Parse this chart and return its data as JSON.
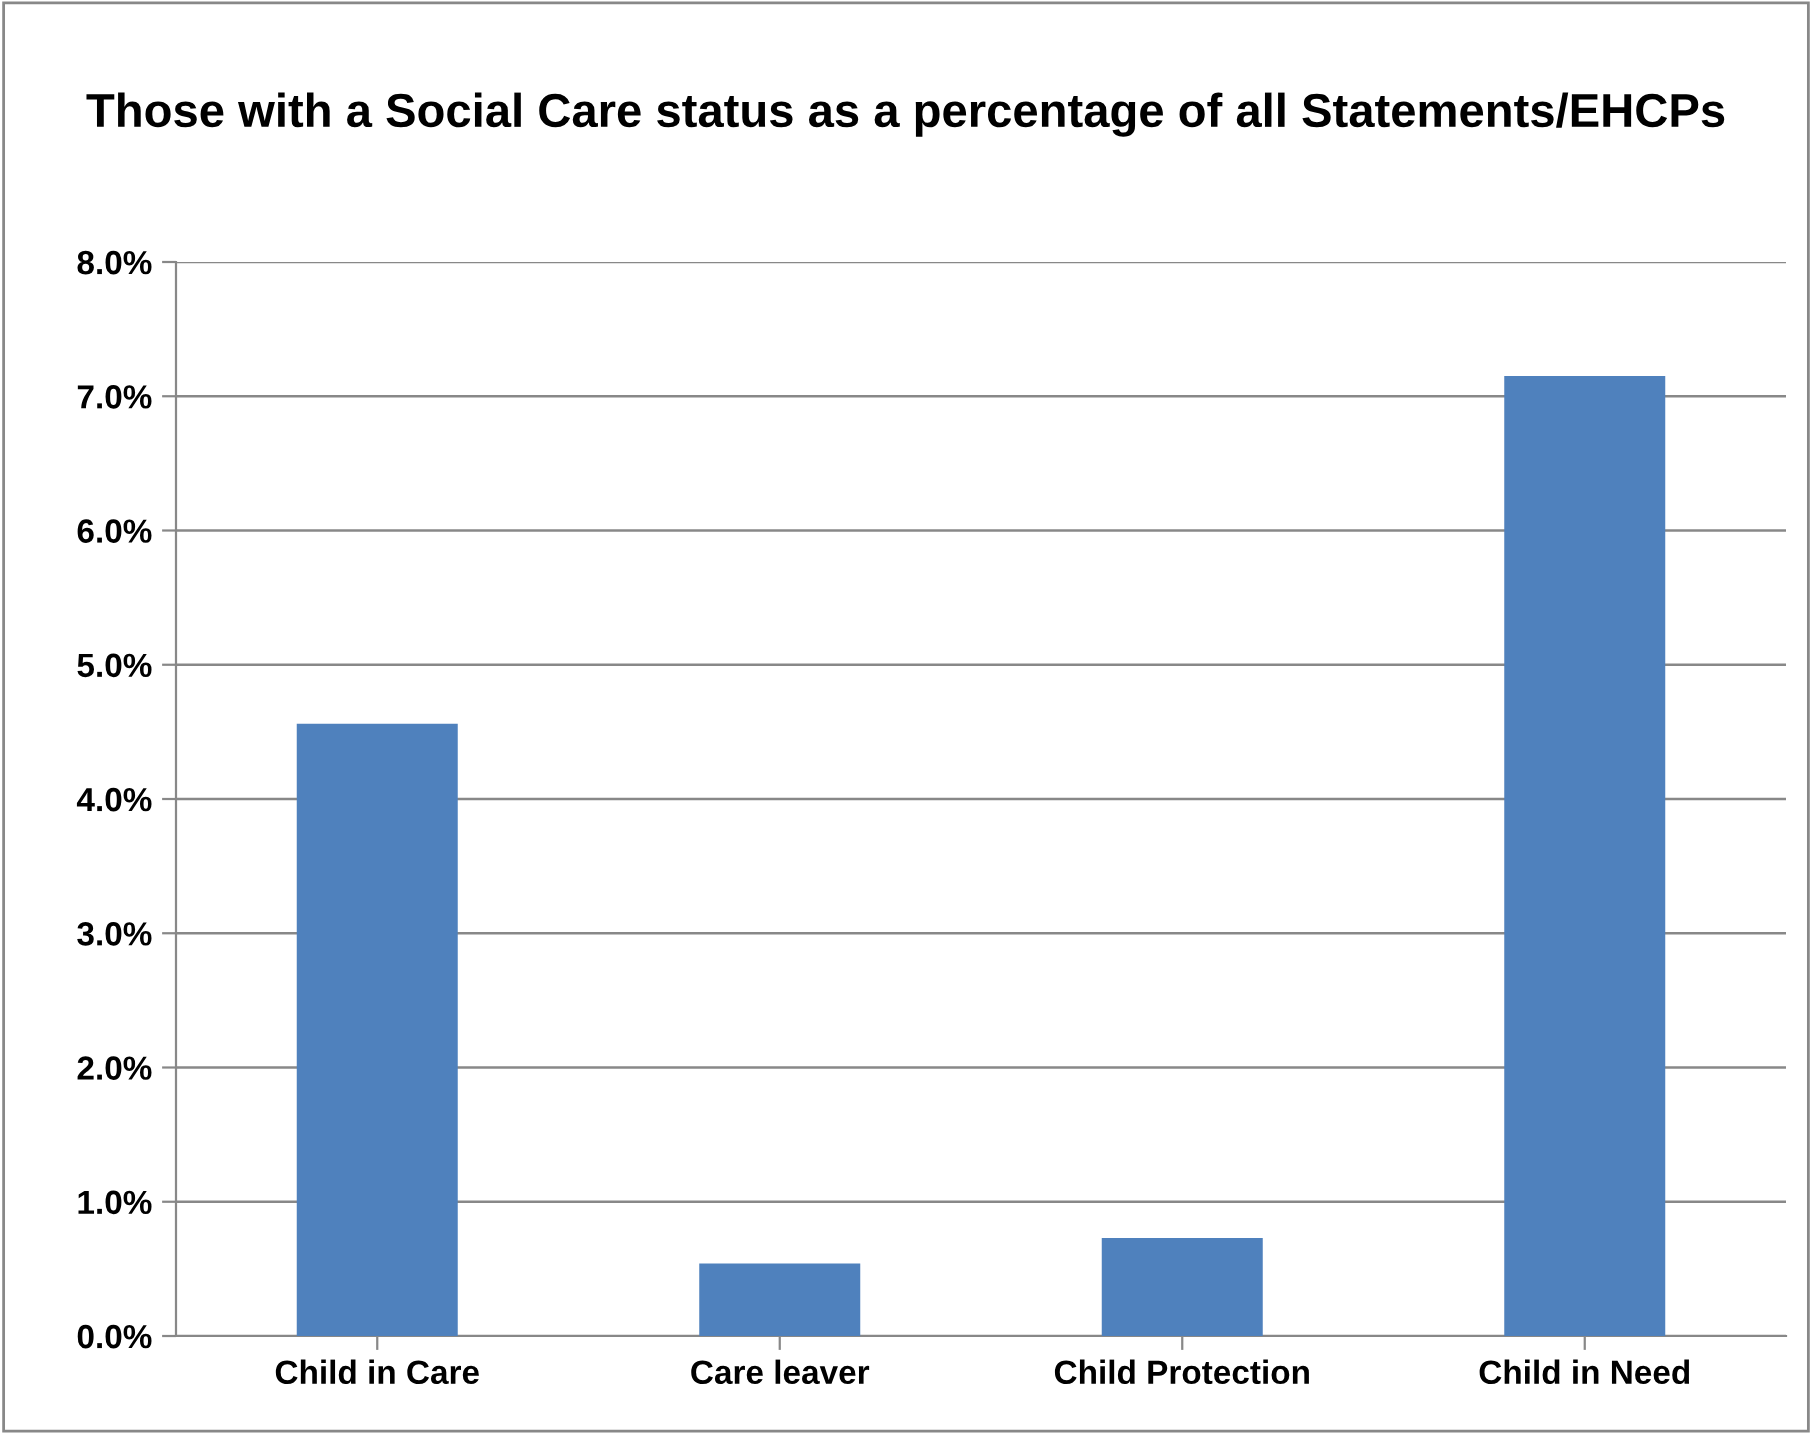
{
  "chart_data": {
    "type": "bar",
    "title": "Those with a Social Care status as a percentage of all Statements/EHCPs",
    "categories": [
      "Child in Care",
      "Care leaver",
      "Child Protection",
      "Child in Need"
    ],
    "values": [
      4.56,
      0.54,
      0.73,
      7.15
    ],
    "color": "#4f81bd",
    "ylim": [
      0,
      8
    ],
    "yticks": [
      {
        "value": 0,
        "label": "0.0%"
      },
      {
        "value": 1,
        "label": "1.0%"
      },
      {
        "value": 2,
        "label": "2.0%"
      },
      {
        "value": 3,
        "label": "3.0%"
      },
      {
        "value": 4,
        "label": "4.0%"
      },
      {
        "value": 5,
        "label": "5.0%"
      },
      {
        "value": 6,
        "label": "6.0%"
      },
      {
        "value": 7,
        "label": "7.0%"
      },
      {
        "value": 8,
        "label": "8.0%"
      }
    ],
    "grid": "y"
  }
}
